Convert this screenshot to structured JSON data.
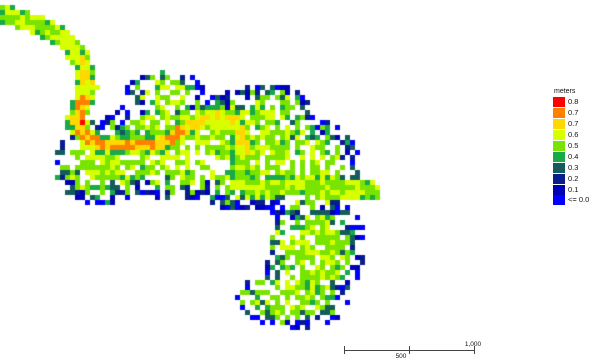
{
  "legend": {
    "title": "meters",
    "items": [
      {
        "label": "0.8",
        "color": "#ff0000"
      },
      {
        "label": "0.7",
        "color": "#ff7f00"
      },
      {
        "label": "0.7",
        "color": "#ffd800"
      },
      {
        "label": "0.6",
        "color": "#d7ff00"
      },
      {
        "label": "0.5",
        "color": "#78e400"
      },
      {
        "label": "0.4",
        "color": "#18a94a"
      },
      {
        "label": "0.3",
        "color": "#145c5c"
      },
      {
        "label": "0.2",
        "color": "#071e8c"
      },
      {
        "label": "0.1",
        "color": "#0000b6"
      },
      {
        "label": "<= 0.0",
        "color": "#0000ff"
      }
    ]
  },
  "scale_bar": {
    "mid_label": "500",
    "end_label": "1,000"
  },
  "map": {
    "background_color": "#ffffff",
    "palette": [
      "#0000ff",
      "#0000b6",
      "#071e8c",
      "#145c5c",
      "#18a94a",
      "#78e400",
      "#d7ff00",
      "#ffd800",
      "#ff7f00",
      "#ff0000"
    ]
  }
}
